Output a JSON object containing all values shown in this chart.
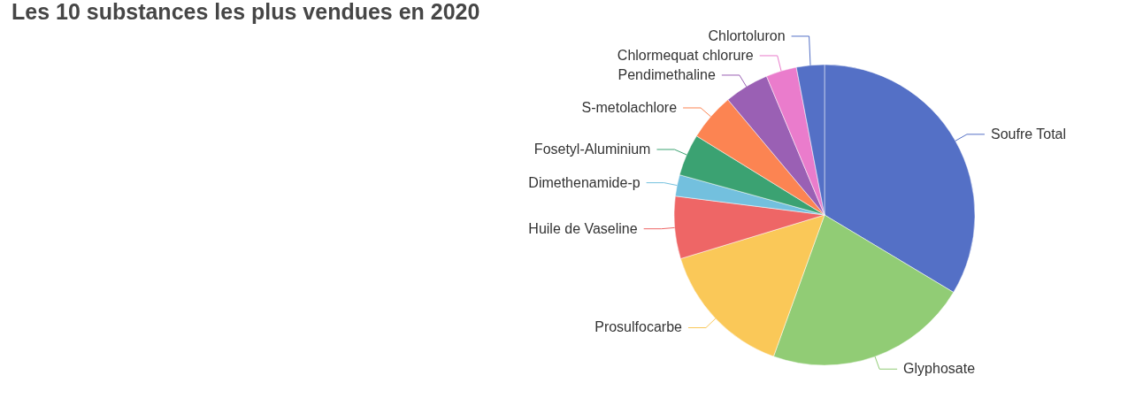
{
  "chart_data": {
    "type": "pie",
    "title": "Les 10 substances les plus vendues en 2020",
    "categories": [
      "Soufre Total",
      "Glyphosate",
      "Prosulfocarbe",
      "Huile de Vaseline",
      "Dimethenamide-p",
      "Fosetyl-Aluminium",
      "S-metolachlore",
      "Pendimethaline",
      "Chlormequat chlorure",
      "Chlortoluron"
    ],
    "values": [
      33.6,
      21.9,
      14.8,
      6.7,
      2.3,
      4.5,
      5.1,
      4.8,
      3.3,
      3.0
    ],
    "colors": [
      "#5470c6",
      "#91cc75",
      "#fac858",
      "#ee6666",
      "#73c0de",
      "#3ba272",
      "#fc8452",
      "#9a60b4",
      "#ea7ccc",
      "#5470c6"
    ]
  }
}
